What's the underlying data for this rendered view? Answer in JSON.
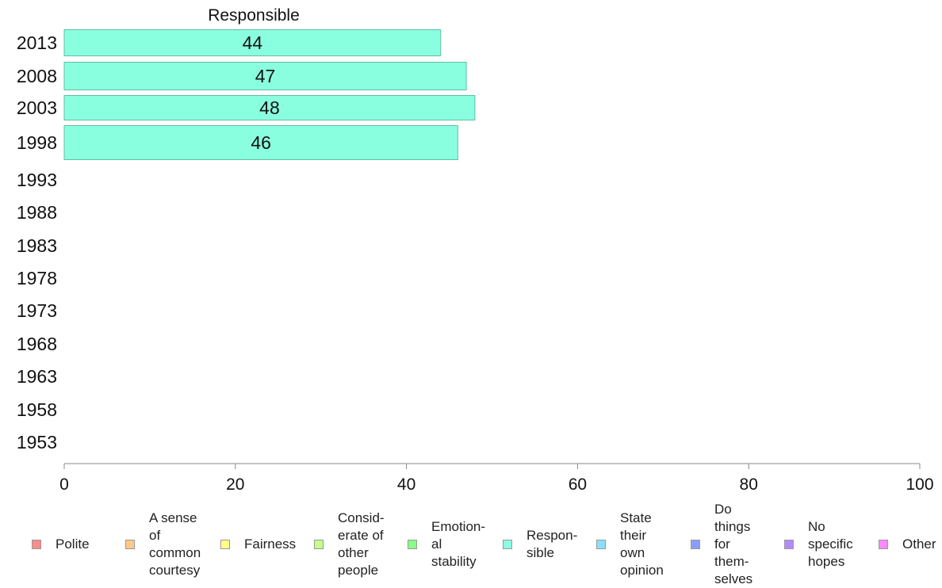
{
  "chart_data": {
    "type": "bar",
    "orientation": "horizontal",
    "title": "Responsible",
    "categories": [
      "2013",
      "2008",
      "2003",
      "1998",
      "1993",
      "1988",
      "1983",
      "1978",
      "1973",
      "1968",
      "1963",
      "1958",
      "1953"
    ],
    "series": [
      {
        "name": "Responsible",
        "color": "#8affe0",
        "values": [
          44,
          47,
          48,
          46,
          null,
          null,
          null,
          null,
          null,
          null,
          null,
          null,
          null
        ]
      }
    ],
    "xlim": [
      0,
      100
    ],
    "xticks": [
      "0",
      "20",
      "40",
      "60",
      "80",
      "100"
    ],
    "grid": false,
    "legend_position": "bottom"
  },
  "legend": [
    {
      "label": "Polite",
      "color": "#ff8a8a"
    },
    {
      "label": "A sense\nof\ncommon\ncourtesy",
      "color": "#ffc98a"
    },
    {
      "label": "Fairness",
      "color": "#ffff8a"
    },
    {
      "label": "Consid-\nerate of\nother\npeople",
      "color": "#c4ff8a"
    },
    {
      "label": "Emotion-\nal\nstability",
      "color": "#8aff8a"
    },
    {
      "label": "Respon-\nsible",
      "color": "#8affe0"
    },
    {
      "label": "State\ntheir\nown\nopinion",
      "color": "#8ae0ff"
    },
    {
      "label": "Do\nthings\nfor\nthem-\nselves",
      "color": "#8a9cff"
    },
    {
      "label": "No\nspecific\nhopes",
      "color": "#b48aff"
    },
    {
      "label": "Other",
      "color": "#ff8aff"
    }
  ]
}
